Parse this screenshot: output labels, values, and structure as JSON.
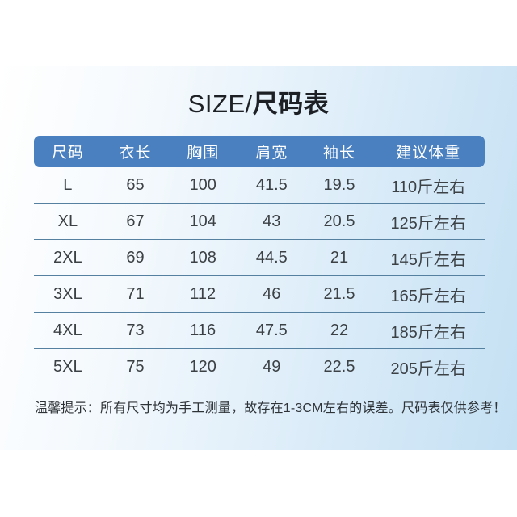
{
  "title": {
    "latin": "SIZE/",
    "cjk": "尺码表"
  },
  "table": {
    "headers": [
      "尺码",
      "衣长",
      "胸围",
      "肩宽",
      "袖长",
      "建议体重"
    ],
    "rows": [
      [
        "L",
        "65",
        "100",
        "41.5",
        "19.5",
        "110斤左右"
      ],
      [
        "XL",
        "67",
        "104",
        "43",
        "20.5",
        "125斤左右"
      ],
      [
        "2XL",
        "69",
        "108",
        "44.5",
        "21",
        "145斤左右"
      ],
      [
        "3XL",
        "71",
        "112",
        "46",
        "21.5",
        "165斤左右"
      ],
      [
        "4XL",
        "73",
        "116",
        "47.5",
        "22",
        "185斤左右"
      ],
      [
        "5XL",
        "75",
        "120",
        "49",
        "22.5",
        "205斤左右"
      ]
    ]
  },
  "note": "温馨提示：所有尺寸均为手工测量，故存在1-3CM左右的误差。尺码表仅供参考！",
  "colors": {
    "header_bg": "#4a80c0",
    "divider": "#55809f",
    "panel_gradient_start": "#ffffff",
    "panel_gradient_end": "#c4e0f3",
    "title_text": "#1d2126",
    "cell_text": "#3c4145"
  }
}
